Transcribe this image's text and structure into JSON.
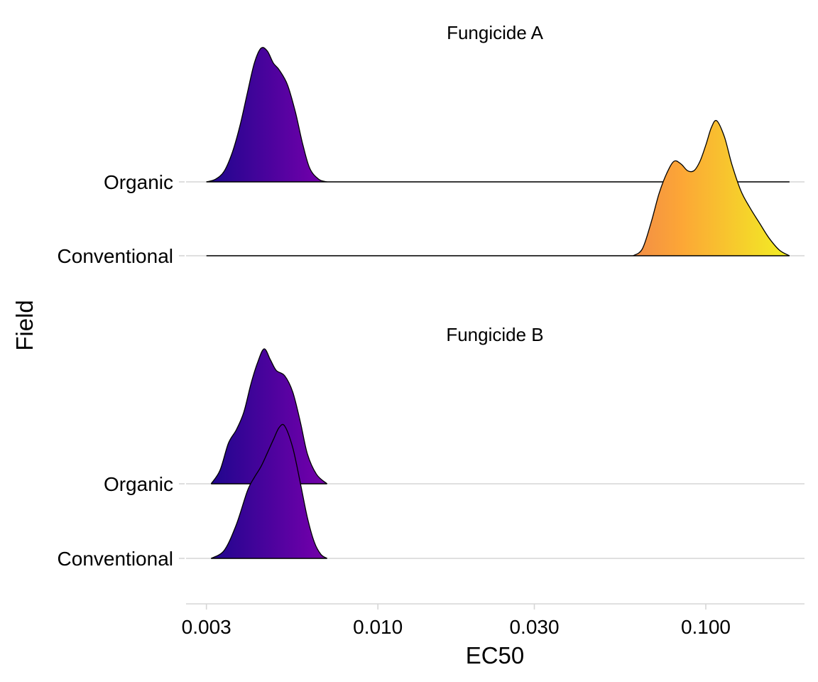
{
  "chart_data": {
    "type": "ridgeline",
    "xlabel": "EC50",
    "ylabel": "Field",
    "x_scale": "log10",
    "xlim": [
      0.0026,
      0.2
    ],
    "x_ticks": [
      {
        "value": 0.003,
        "label": "0.003"
      },
      {
        "value": 0.01,
        "label": "0.010"
      },
      {
        "value": 0.03,
        "label": "0.030"
      },
      {
        "value": 0.1,
        "label": "0.100"
      }
    ],
    "color_scale": {
      "name": "plasma",
      "stops": [
        "#0d0887",
        "#6a00a8",
        "#b12a90",
        "#e16462",
        "#fca636",
        "#f0f921"
      ]
    },
    "grid": true,
    "legend": "none",
    "panels": [
      {
        "title": "Fungicide A",
        "categories": [
          "Organic",
          "Conventional"
        ],
        "series": [
          {
            "category": "Organic",
            "x": [
              0.003,
              0.0032,
              0.0034,
              0.0036,
              0.0038,
              0.004,
              0.0042,
              0.0044,
              0.0046,
              0.0048,
              0.005,
              0.0053,
              0.0056,
              0.0059,
              0.0062,
              0.0066,
              0.007
            ],
            "density": [
              0,
              0.02,
              0.08,
              0.22,
              0.42,
              0.66,
              0.88,
              0.99,
              0.97,
              0.88,
              0.83,
              0.72,
              0.52,
              0.28,
              0.1,
              0.02,
              0
            ],
            "line_extends_to": 0.18
          },
          {
            "category": "Conventional",
            "x": [
              0.06,
              0.064,
              0.068,
              0.072,
              0.076,
              0.08,
              0.084,
              0.088,
              0.092,
              0.096,
              0.1,
              0.104,
              0.108,
              0.114,
              0.12,
              0.128,
              0.136,
              0.146,
              0.156,
              0.168,
              0.18
            ],
            "density": [
              0,
              0.05,
              0.24,
              0.46,
              0.61,
              0.7,
              0.68,
              0.63,
              0.63,
              0.7,
              0.82,
              0.95,
              1.0,
              0.88,
              0.68,
              0.48,
              0.36,
              0.24,
              0.13,
              0.04,
              0
            ],
            "line_extends_from": 0.003
          }
        ]
      },
      {
        "title": "Fungicide B",
        "categories": [
          "Organic",
          "Conventional"
        ],
        "series": [
          {
            "category": "Organic",
            "x": [
              0.0031,
              0.0033,
              0.0035,
              0.0037,
              0.0039,
              0.0041,
              0.0043,
              0.0045,
              0.0047,
              0.0049,
              0.0052,
              0.0055,
              0.0058,
              0.0061,
              0.0065,
              0.007
            ],
            "density": [
              0,
              0.1,
              0.3,
              0.4,
              0.53,
              0.74,
              0.9,
              1.0,
              0.92,
              0.84,
              0.8,
              0.68,
              0.46,
              0.22,
              0.07,
              0
            ]
          },
          {
            "category": "Conventional",
            "x": [
              0.0031,
              0.0034,
              0.0037,
              0.004,
              0.0042,
              0.0044,
              0.0046,
              0.0048,
              0.005,
              0.0052,
              0.0055,
              0.0058,
              0.0061,
              0.0064,
              0.0067,
              0.007
            ],
            "density": [
              0,
              0.06,
              0.25,
              0.5,
              0.6,
              0.68,
              0.78,
              0.88,
              0.97,
              0.98,
              0.82,
              0.56,
              0.3,
              0.12,
              0.03,
              0
            ]
          }
        ]
      }
    ]
  }
}
